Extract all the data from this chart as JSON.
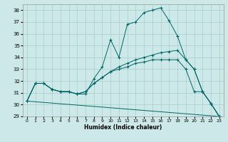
{
  "title": "",
  "xlabel": "Humidex (Indice chaleur)",
  "ylabel": "",
  "background_color": "#cce8e8",
  "grid_color": "#aacccc",
  "line_color": "#006666",
  "xlim": [
    -0.5,
    23.5
  ],
  "ylim": [
    29,
    38.5
  ],
  "yticks": [
    29,
    30,
    31,
    32,
    33,
    34,
    35,
    36,
    37,
    38
  ],
  "xticks": [
    0,
    1,
    2,
    3,
    4,
    5,
    6,
    7,
    8,
    9,
    10,
    11,
    12,
    13,
    14,
    15,
    16,
    17,
    18,
    19,
    20,
    21,
    22,
    23
  ],
  "line1_x": [
    0,
    1,
    2,
    3,
    4,
    5,
    6,
    7,
    8,
    9,
    10,
    11,
    12,
    13,
    14,
    15,
    16,
    17,
    18,
    19,
    20,
    21,
    22,
    23
  ],
  "line1_y": [
    30.3,
    31.8,
    31.8,
    31.3,
    31.1,
    31.1,
    30.9,
    30.9,
    32.2,
    33.2,
    35.5,
    34.0,
    36.8,
    37.0,
    37.8,
    38.0,
    38.2,
    37.1,
    35.8,
    33.8,
    33.0,
    31.1,
    30.1,
    29.0
  ],
  "line2_x": [
    0,
    1,
    2,
    3,
    4,
    5,
    6,
    7,
    8,
    9,
    10,
    11,
    12,
    13,
    14,
    15,
    16,
    17,
    18,
    19,
    20,
    21,
    22,
    23
  ],
  "line2_y": [
    30.3,
    31.8,
    31.8,
    31.3,
    31.1,
    31.1,
    30.9,
    31.1,
    31.8,
    32.3,
    32.8,
    33.2,
    33.5,
    33.8,
    34.0,
    34.2,
    34.4,
    34.5,
    34.6,
    33.8,
    33.0,
    31.1,
    30.1,
    29.0
  ],
  "line3_x": [
    0,
    1,
    2,
    3,
    4,
    5,
    6,
    7,
    8,
    9,
    10,
    11,
    12,
    13,
    14,
    15,
    16,
    17,
    18,
    19,
    20,
    21,
    22,
    23
  ],
  "line3_y": [
    30.3,
    31.8,
    31.8,
    31.3,
    31.1,
    31.1,
    30.9,
    31.1,
    31.8,
    32.3,
    32.8,
    33.0,
    33.2,
    33.5,
    33.6,
    33.8,
    33.8,
    33.8,
    33.8,
    33.0,
    31.1,
    31.1,
    30.1,
    29.0
  ],
  "line4_x": [
    0,
    23
  ],
  "line4_y": [
    30.3,
    29.0
  ]
}
